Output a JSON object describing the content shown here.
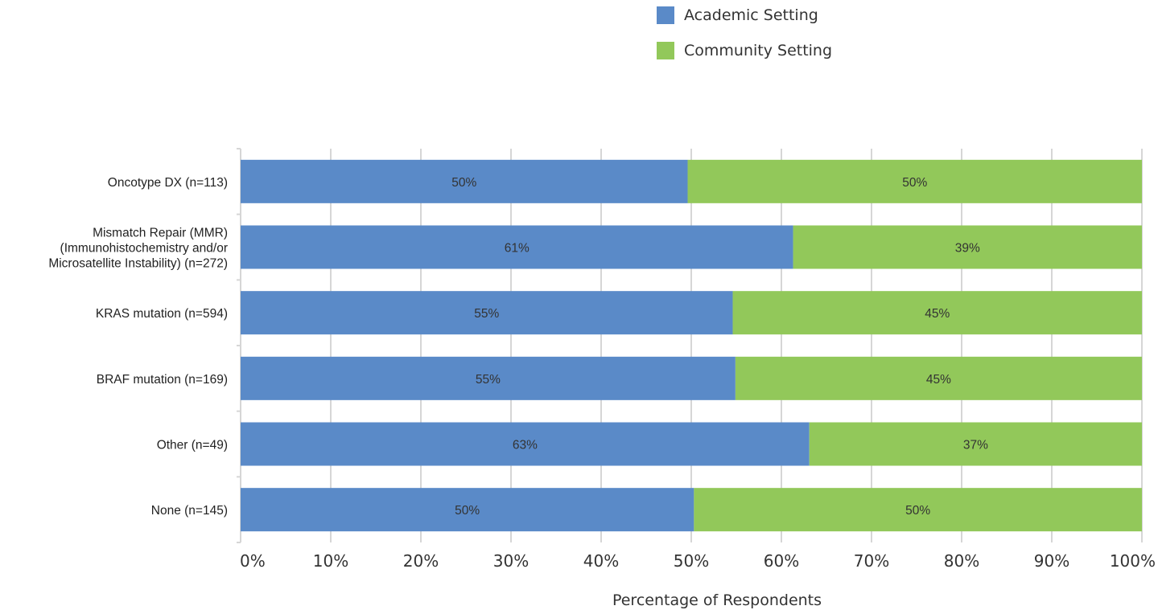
{
  "chart_data": {
    "type": "bar",
    "orientation": "horizontal",
    "stacked": true,
    "categories": [
      [
        "Oncotype DX (n=113)"
      ],
      [
        "Mismatch Repair (MMR)",
        "(Immunohistochemistry and/or",
        "Microsatellite Instability) (n=272)"
      ],
      [
        "KRAS mutation (n=594)"
      ],
      [
        "BRAF mutation (n=169)"
      ],
      [
        "Other (n=49)"
      ],
      [
        "None (n=145)"
      ]
    ],
    "series": [
      {
        "name": "Academic Setting",
        "color": "#5a8ac8",
        "values": [
          49.6,
          61.3,
          54.6,
          54.9,
          63.1,
          50.3
        ],
        "labels": [
          "50%",
          "61%",
          "55%",
          "55%",
          "63%",
          "50%"
        ]
      },
      {
        "name": "Community Setting",
        "color": "#92c85a",
        "values": [
          50.4,
          38.7,
          45.4,
          45.1,
          36.9,
          49.7
        ],
        "labels": [
          "50%",
          "39%",
          "45%",
          "45%",
          "37%",
          "50%"
        ]
      }
    ],
    "xlim": [
      0,
      100
    ],
    "xticks": [
      0,
      10,
      20,
      30,
      40,
      50,
      60,
      70,
      80,
      90,
      100
    ],
    "xtick_labels": [
      "0%",
      "10%",
      "20%",
      "30%",
      "40%",
      "50%",
      "60%",
      "70%",
      "80%",
      "90%",
      "100%"
    ],
    "xlabel": "Percentage of Respondents",
    "grid": true,
    "legend": "top-right",
    "gridline_color": "#d6d6d6"
  }
}
